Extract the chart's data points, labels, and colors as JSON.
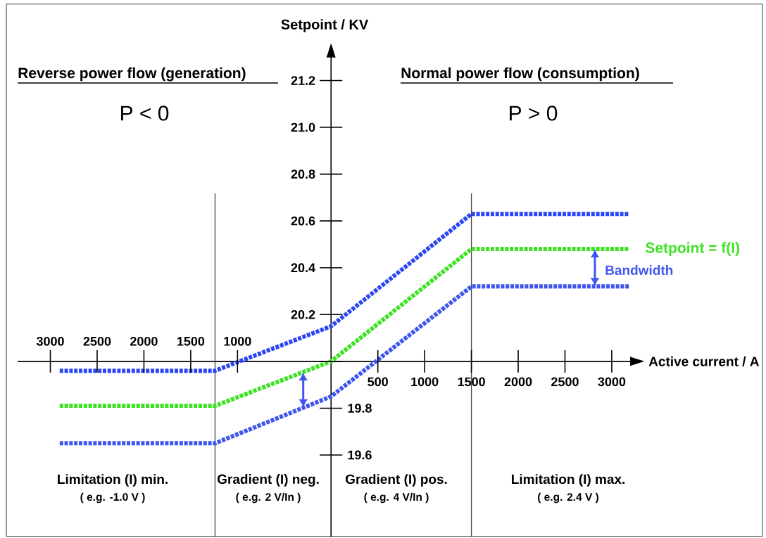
{
  "chart_data": {
    "type": "line",
    "xlabel": "Active current / A",
    "ylabel": "Setpoint / KV",
    "x": [
      -2900,
      -1240,
      0,
      1500,
      3190
    ],
    "series": [
      {
        "color": "#2a46f5",
        "values": [
          19.96,
          19.96,
          20.15,
          20.63,
          20.63
        ]
      },
      {
        "name": "Setpoint = f(I)",
        "color": "#3de322",
        "values": [
          19.81,
          19.81,
          20.0,
          20.48,
          20.48
        ]
      },
      {
        "color": "#3e55ee",
        "values": [
          19.65,
          19.65,
          19.85,
          20.32,
          20.32
        ]
      }
    ],
    "xlim": [
      -3350,
      3200
    ],
    "ylim": [
      19.25,
      21.3
    ],
    "xticks": [
      500,
      1000,
      1500,
      2000,
      2500,
      3000
    ],
    "yticks": [
      {
        "value": 20,
        "label": null
      },
      20.2,
      20.4,
      20.6,
      20.8,
      {
        "value": 21,
        "label": "21.0"
      },
      21.2
    ],
    "x2lim": [
      -3350,
      3200
    ],
    "x2ticks": [
      {
        "value": -3000,
        "label": "3000"
      },
      {
        "value": -2500,
        "label": "2500"
      },
      {
        "value": -2000,
        "label": "2000"
      },
      {
        "value": -1500,
        "label": "1500"
      },
      {
        "value": -1000,
        "label": "1000"
      }
    ],
    "y2lim": [
      19.25,
      21.3
    ],
    "y2ticks": [
      19.6,
      19.8
    ],
    "ref_lines": [
      {
        "axis": "y",
        "value": 20,
        "color": "#000000"
      },
      {
        "axis": "x",
        "value": -1240,
        "color": "#444444"
      },
      {
        "axis": "x",
        "value": 1500,
        "color": "#444444"
      }
    ],
    "annotations": [
      "Reverse power flow (generation)",
      "P < 0",
      "Normal power flow (consumption)",
      "P > 0",
      "Bandwidth",
      "Limitation (I) min.",
      "( e.g. -1.0 V )",
      "Gradient (I) neg.",
      "( e.g. 2 V/In )",
      "Gradient (I) pos.",
      "( e.g. 4 V/In )",
      "Limitation (I) max.",
      "( e.g. 2.4 V )"
    ],
    "line_style": "dashed"
  }
}
